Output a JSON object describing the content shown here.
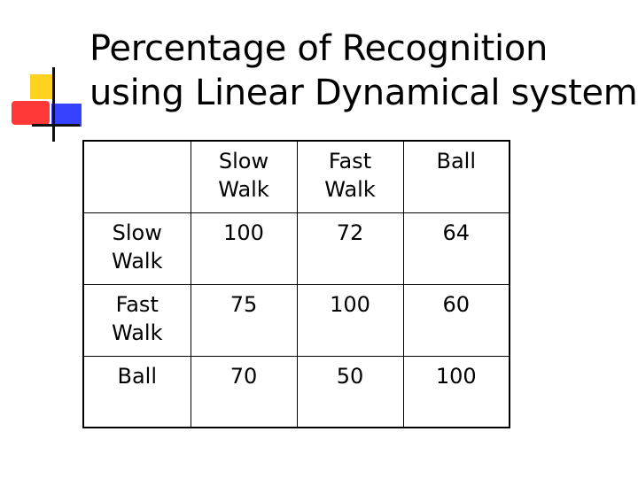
{
  "title": {
    "line1": "Percentage of Recognition",
    "line2": "using Linear Dynamical system"
  },
  "logo": {
    "colors": {
      "yellow": "#ffd21f",
      "red": "#ff3838",
      "blue": "#3742ff",
      "line": "#111111"
    }
  },
  "table": {
    "corner": "",
    "columns": [
      [
        "Slow",
        "Walk"
      ],
      [
        "Fast",
        "Walk"
      ],
      [
        "Ball"
      ]
    ],
    "rows": [
      {
        "label": [
          "Slow",
          "Walk"
        ],
        "values": [
          "100",
          "72",
          "64"
        ]
      },
      {
        "label": [
          "Fast",
          "Walk"
        ],
        "values": [
          "75",
          "100",
          "60"
        ]
      },
      {
        "label": [
          "Ball"
        ],
        "values": [
          "70",
          "50",
          "100"
        ]
      }
    ]
  }
}
